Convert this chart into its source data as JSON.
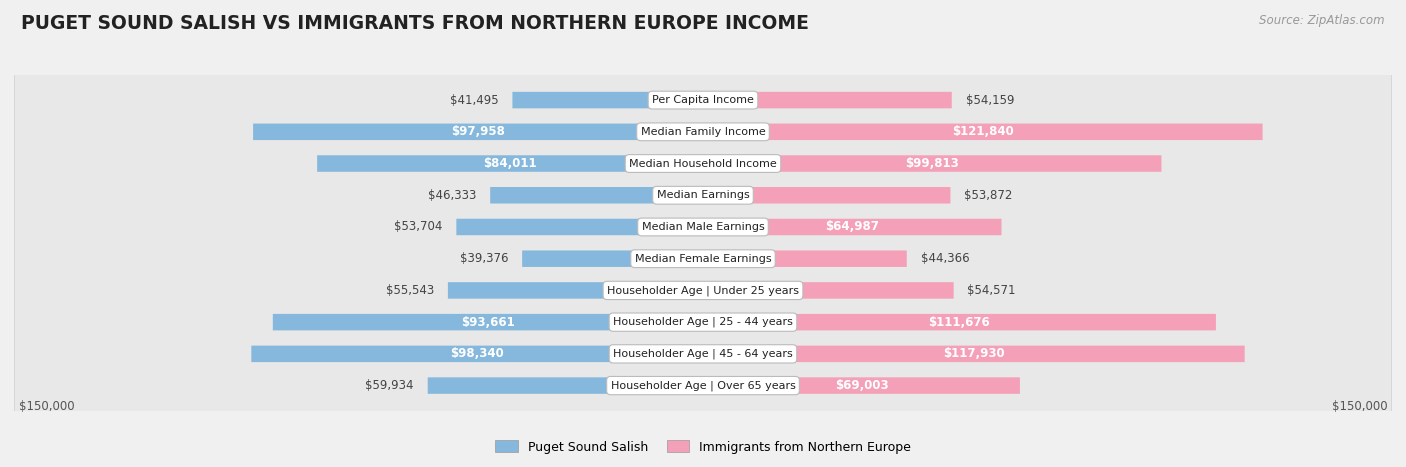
{
  "title": "PUGET SOUND SALISH VS IMMIGRANTS FROM NORTHERN EUROPE INCOME",
  "source": "Source: ZipAtlas.com",
  "categories": [
    "Per Capita Income",
    "Median Family Income",
    "Median Household Income",
    "Median Earnings",
    "Median Male Earnings",
    "Median Female Earnings",
    "Householder Age | Under 25 years",
    "Householder Age | 25 - 44 years",
    "Householder Age | 45 - 64 years",
    "Householder Age | Over 65 years"
  ],
  "left_values": [
    41495,
    97958,
    84011,
    46333,
    53704,
    39376,
    55543,
    93661,
    98340,
    59934
  ],
  "right_values": [
    54159,
    121840,
    99813,
    53872,
    64987,
    44366,
    54571,
    111676,
    117930,
    69003
  ],
  "left_labels": [
    "$41,495",
    "$97,958",
    "$84,011",
    "$46,333",
    "$53,704",
    "$39,376",
    "$55,543",
    "$93,661",
    "$98,340",
    "$59,934"
  ],
  "right_labels": [
    "$54,159",
    "$121,840",
    "$99,813",
    "$53,872",
    "$64,987",
    "$44,366",
    "$54,571",
    "$111,676",
    "$117,930",
    "$69,003"
  ],
  "left_color": "#85b8dc",
  "right_color": "#f4a0b8",
  "right_color_bright": "#ee6b9e",
  "left_color_bright": "#4a90c4",
  "max_value": 150000,
  "legend_left": "Puget Sound Salish",
  "legend_right": "Immigrants from Northern Europe",
  "background_color": "#f0f0f0",
  "row_colors": [
    "#ffffff",
    "#e8e8e8"
  ],
  "label_inside_threshold": 60000,
  "title_fontsize": 13.5,
  "label_fontsize": 8.5,
  "cat_fontsize": 8.0
}
